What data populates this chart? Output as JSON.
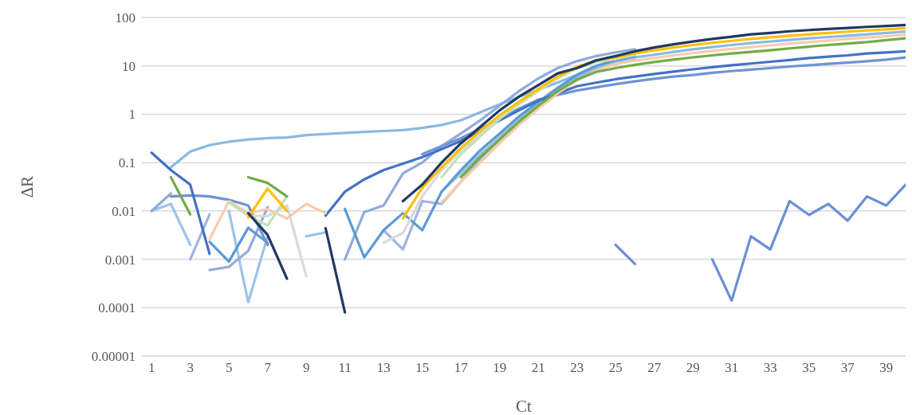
{
  "chart_data": {
    "type": "line",
    "xlabel": "Ct",
    "ylabel": "ΔR",
    "log": "y",
    "grid": "y",
    "legend": false,
    "marker": "none",
    "line_style": "solid",
    "x": [
      1,
      2,
      3,
      4,
      5,
      6,
      7,
      8,
      9,
      10,
      11,
      12,
      13,
      14,
      15,
      16,
      17,
      18,
      19,
      20,
      21,
      22,
      23,
      24,
      25,
      26,
      27,
      28,
      29,
      30,
      31,
      32,
      33,
      34,
      35,
      36,
      37,
      38,
      39,
      40
    ],
    "xlim": [
      0.5,
      40
    ],
    "xticks": [
      1,
      3,
      5,
      7,
      9,
      11,
      13,
      15,
      17,
      19,
      21,
      23,
      25,
      27,
      29,
      31,
      33,
      35,
      37,
      39
    ],
    "ylim": [
      1e-05,
      100
    ],
    "yticks": [
      {
        "value": 1e-05,
        "label": "0.00001"
      },
      {
        "value": 0.0001,
        "label": "0.0001"
      },
      {
        "value": 0.001,
        "label": "0.001"
      },
      {
        "value": 0.01,
        "label": "0.01"
      },
      {
        "value": 0.1,
        "label": "0.1"
      },
      1,
      10,
      100
    ],
    "series": [
      {
        "color": "#8ab9e2",
        "values": [
          null,
          0.08,
          0.17,
          0.23,
          0.27,
          0.3,
          0.32,
          0.33,
          0.37,
          0.39,
          0.41,
          0.43,
          0.45,
          0.47,
          0.52,
          0.6,
          0.75,
          1.1,
          1.6,
          2.3,
          3.2,
          4.5,
          6.5,
          10,
          13,
          15,
          17,
          19.5,
          22,
          24.5,
          27,
          29.5,
          32,
          34.5,
          37,
          39.5,
          42,
          45,
          48,
          51
        ]
      },
      {
        "color": "#9dc3e6",
        "values": [
          0.01,
          0.014,
          0.002,
          null,
          0.01,
          0.00013,
          0.003,
          null,
          0.003,
          0.0036,
          null,
          null,
          null,
          null,
          null,
          0.025,
          0.06,
          0.15,
          0.35,
          0.8,
          1.7,
          3.3,
          6,
          9,
          12,
          14,
          null,
          null,
          null,
          null,
          null,
          null,
          null,
          null,
          null,
          null,
          null,
          null,
          null,
          null
        ]
      },
      {
        "color": "#8faadc",
        "values": [
          0.01,
          0.023,
          null,
          null,
          null,
          null,
          null,
          null,
          null,
          null,
          0.001,
          0.0095,
          0.013,
          0.06,
          0.1,
          0.22,
          0.4,
          0.75,
          1.5,
          3,
          5.5,
          9,
          12.5,
          16,
          19,
          22,
          null,
          null,
          null,
          null,
          null,
          null,
          null,
          null,
          null,
          null,
          null,
          null,
          null,
          null
        ]
      },
      {
        "color": "#9fb4e2",
        "values": [
          null,
          null,
          0.001,
          0.0085,
          null,
          null,
          null,
          null,
          null,
          null,
          null,
          null,
          0.004,
          0.0016,
          0.016,
          0.014,
          0.04,
          0.12,
          0.3,
          0.7,
          1.5,
          3,
          5.5,
          8.5,
          11,
          13,
          null,
          null,
          null,
          null,
          null,
          null,
          null,
          null,
          null,
          null,
          null,
          null,
          null,
          null
        ]
      },
      {
        "color": "#8faadc",
        "values": [
          null,
          null,
          null,
          0.0006,
          0.0007,
          0.0015,
          0.012,
          null,
          null,
          null,
          null,
          null,
          null,
          null,
          null,
          null,
          null,
          null,
          null,
          null,
          null,
          null,
          null,
          null,
          null,
          null,
          null,
          null,
          null,
          null,
          null,
          null,
          null,
          null,
          null,
          null,
          null,
          null,
          null,
          null
        ]
      },
      {
        "color": "#5b9bd5",
        "values": [
          null,
          null,
          null,
          0.0023,
          0.0009,
          0.0045,
          0.0022,
          null,
          null,
          null,
          0.011,
          0.0011,
          0.004,
          0.009,
          0.004,
          0.025,
          0.07,
          0.18,
          0.4,
          0.9,
          1.8,
          3.5,
          6.5,
          10,
          13,
          16,
          null,
          null,
          null,
          null,
          null,
          null,
          null,
          null,
          null,
          null,
          null,
          null,
          null,
          null
        ]
      },
      {
        "color": "#6f93d6",
        "values": [
          null,
          0.02,
          0.021,
          0.02,
          0.017,
          0.013,
          0.002,
          null,
          null,
          null,
          null,
          null,
          null,
          null,
          0.15,
          0.22,
          0.32,
          0.5,
          0.8,
          1.3,
          2,
          2.5,
          3.1,
          3.6,
          4.2,
          4.8,
          5.4,
          6,
          6.5,
          7.2,
          7.8,
          8.4,
          9,
          9.7,
          10.3,
          11,
          11.7,
          12.5,
          13.5,
          15
        ]
      },
      {
        "color": "#4472c4",
        "values": [
          0.16,
          0.07,
          0.035,
          0.0013,
          null,
          null,
          null,
          null,
          null,
          0.008,
          0.025,
          0.045,
          0.07,
          0.095,
          0.13,
          0.19,
          0.28,
          0.45,
          0.75,
          1.2,
          1.9,
          2.7,
          3.8,
          4.5,
          5.3,
          6,
          6.8,
          7.6,
          8.5,
          9.4,
          10.3,
          11.2,
          12.2,
          13.2,
          14.5,
          15.5,
          16.5,
          18,
          19,
          20
        ]
      },
      {
        "color": "#6a8fd4",
        "values": [
          null,
          null,
          null,
          null,
          null,
          null,
          null,
          null,
          null,
          null,
          null,
          null,
          null,
          null,
          null,
          null,
          null,
          null,
          null,
          null,
          null,
          null,
          null,
          null,
          0.002,
          0.0008,
          null,
          null,
          null,
          0.001,
          0.00014,
          0.003,
          0.0016,
          0.016,
          0.0083,
          0.014,
          0.0063,
          0.02,
          0.013,
          0.035
        ]
      },
      {
        "color": "#d9d9d9",
        "values": [
          null,
          null,
          null,
          null,
          null,
          0.008,
          0.0078,
          0.013,
          0.00045,
          null,
          null,
          null,
          0.0022,
          0.0035,
          0.02,
          0.07,
          0.18,
          0.4,
          0.9,
          1.7,
          3.2,
          5.8,
          9,
          12,
          14,
          17,
          null,
          null,
          null,
          null,
          null,
          null,
          null,
          null,
          null,
          null,
          null,
          null,
          null,
          null
        ]
      },
      {
        "color": "#f8cbad",
        "values": [
          null,
          null,
          null,
          0.0026,
          0.016,
          0.009,
          0.011,
          0.007,
          0.014,
          0.009,
          null,
          null,
          null,
          null,
          null,
          0.015,
          0.04,
          0.1,
          0.25,
          0.6,
          1.3,
          2.7,
          5,
          8,
          11,
          13,
          14.5,
          16.5,
          18.5,
          20.5,
          22.5,
          24.5,
          26.5,
          29,
          31,
          33.5,
          36,
          38.5,
          41,
          44
        ]
      },
      {
        "color": "#c5e0b4",
        "values": [
          null,
          null,
          null,
          null,
          0.015,
          0.008,
          0.005,
          0.02,
          null,
          null,
          null,
          null,
          null,
          null,
          null,
          0.05,
          0.15,
          0.35,
          0.8,
          1.6,
          3,
          5.5,
          9,
          12,
          14,
          17,
          null,
          null,
          null,
          null,
          null,
          null,
          null,
          null,
          null,
          null,
          null,
          null,
          null,
          null
        ]
      },
      {
        "color": "#70ad47",
        "values": [
          null,
          0.05,
          0.0085,
          null,
          null,
          0.05,
          0.038,
          0.02,
          null,
          null,
          null,
          null,
          null,
          null,
          null,
          null,
          0.05,
          0.13,
          0.3,
          0.7,
          1.5,
          3,
          5.2,
          7.5,
          9,
          10.5,
          12,
          13.5,
          15,
          16.5,
          18,
          19.5,
          21,
          23,
          25,
          27,
          29,
          31,
          34,
          37
        ]
      },
      {
        "color": "#ffc000",
        "values": [
          null,
          null,
          null,
          null,
          null,
          0.0074,
          0.029,
          0.01,
          null,
          null,
          null,
          null,
          null,
          0.007,
          0.03,
          0.08,
          0.2,
          0.45,
          0.95,
          1.8,
          3.3,
          6,
          9.5,
          13,
          15,
          18,
          21,
          24,
          27,
          30,
          33,
          36,
          39,
          42,
          45,
          48,
          51,
          54,
          57,
          60
        ]
      },
      {
        "color": "#203864",
        "values": [
          null,
          null,
          null,
          null,
          null,
          0.009,
          0.0032,
          0.0004,
          null,
          0.0044,
          8e-05,
          null,
          null,
          0.016,
          0.035,
          0.1,
          0.25,
          0.55,
          1.2,
          2.3,
          4,
          7,
          9,
          13,
          16,
          20,
          24,
          28,
          32,
          36,
          40,
          45,
          48,
          52,
          55,
          58,
          61,
          64,
          67,
          70
        ]
      }
    ]
  }
}
